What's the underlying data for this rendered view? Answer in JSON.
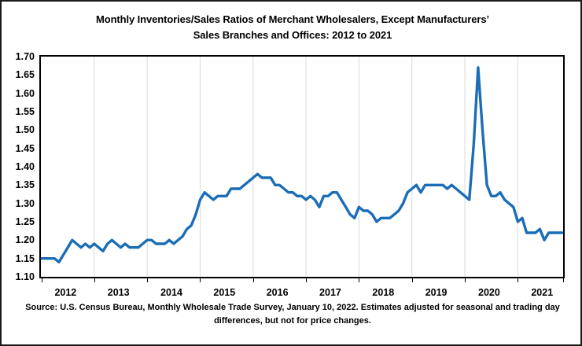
{
  "title": {
    "line1": "Monthly Inventories/Sales Ratios of Merchant Wholesalers, Except Manufacturers’",
    "line2": "Sales Branches and Offices: 2012 to 2021"
  },
  "source": {
    "line1": "Source: U.S. Census Bureau, Monthly Wholesale Trade Survey, January 10, 2022. Estimates adjusted for seasonal and trading day",
    "line2": "differences, but not for price changes."
  },
  "chart_data": {
    "type": "line",
    "title": "Monthly Inventories/Sales Ratios of Merchant Wholesalers, Except Manufacturers’ Sales Branches and Offices: 2012 to 2021",
    "series_name": "Inventories/Sales ratio",
    "frequency": "monthly",
    "start": "2012-01",
    "end": "2021-11",
    "ylim": [
      1.1,
      1.7
    ],
    "y_ticks": [
      1.7,
      1.65,
      1.6,
      1.55,
      1.5,
      1.45,
      1.4,
      1.35,
      1.3,
      1.25,
      1.2,
      1.15,
      1.1
    ],
    "years": [
      2012,
      2013,
      2014,
      2015,
      2016,
      2017,
      2018,
      2019,
      2020,
      2021
    ],
    "grid": "vertical-gridlines-at-year-boundaries",
    "legend": "none",
    "line_color": "#1b6db6",
    "grid_color": "#d9d9d9",
    "values_by_year": {
      "2012": [
        1.15,
        1.15,
        1.15,
        1.15,
        1.14,
        1.16,
        1.18,
        1.2,
        1.19,
        1.18,
        1.19,
        1.18
      ],
      "2013": [
        1.19,
        1.18,
        1.17,
        1.19,
        1.2,
        1.19,
        1.18,
        1.19,
        1.18,
        1.18,
        1.18,
        1.19
      ],
      "2014": [
        1.2,
        1.2,
        1.19,
        1.19,
        1.19,
        1.2,
        1.19,
        1.2,
        1.21,
        1.23,
        1.24,
        1.27
      ],
      "2015": [
        1.31,
        1.33,
        1.32,
        1.31,
        1.32,
        1.32,
        1.32,
        1.34,
        1.34,
        1.34,
        1.35,
        1.36
      ],
      "2016": [
        1.37,
        1.38,
        1.37,
        1.37,
        1.37,
        1.35,
        1.35,
        1.34,
        1.33,
        1.33,
        1.32,
        1.32
      ],
      "2017": [
        1.31,
        1.32,
        1.31,
        1.29,
        1.32,
        1.32,
        1.33,
        1.33,
        1.31,
        1.29,
        1.27,
        1.26
      ],
      "2018": [
        1.29,
        1.28,
        1.28,
        1.27,
        1.25,
        1.26,
        1.26,
        1.26,
        1.27,
        1.28,
        1.3,
        1.33
      ],
      "2019": [
        1.34,
        1.35,
        1.33,
        1.35,
        1.35,
        1.35,
        1.35,
        1.35,
        1.34,
        1.35,
        1.34,
        1.33
      ],
      "2020": [
        1.32,
        1.31,
        1.46,
        1.67,
        1.5,
        1.35,
        1.32,
        1.32,
        1.33,
        1.31,
        1.3,
        1.29
      ],
      "2021": [
        1.25,
        1.26,
        1.22,
        1.22,
        1.22,
        1.23,
        1.2,
        1.22,
        1.22,
        1.22,
        1.22
      ]
    }
  }
}
